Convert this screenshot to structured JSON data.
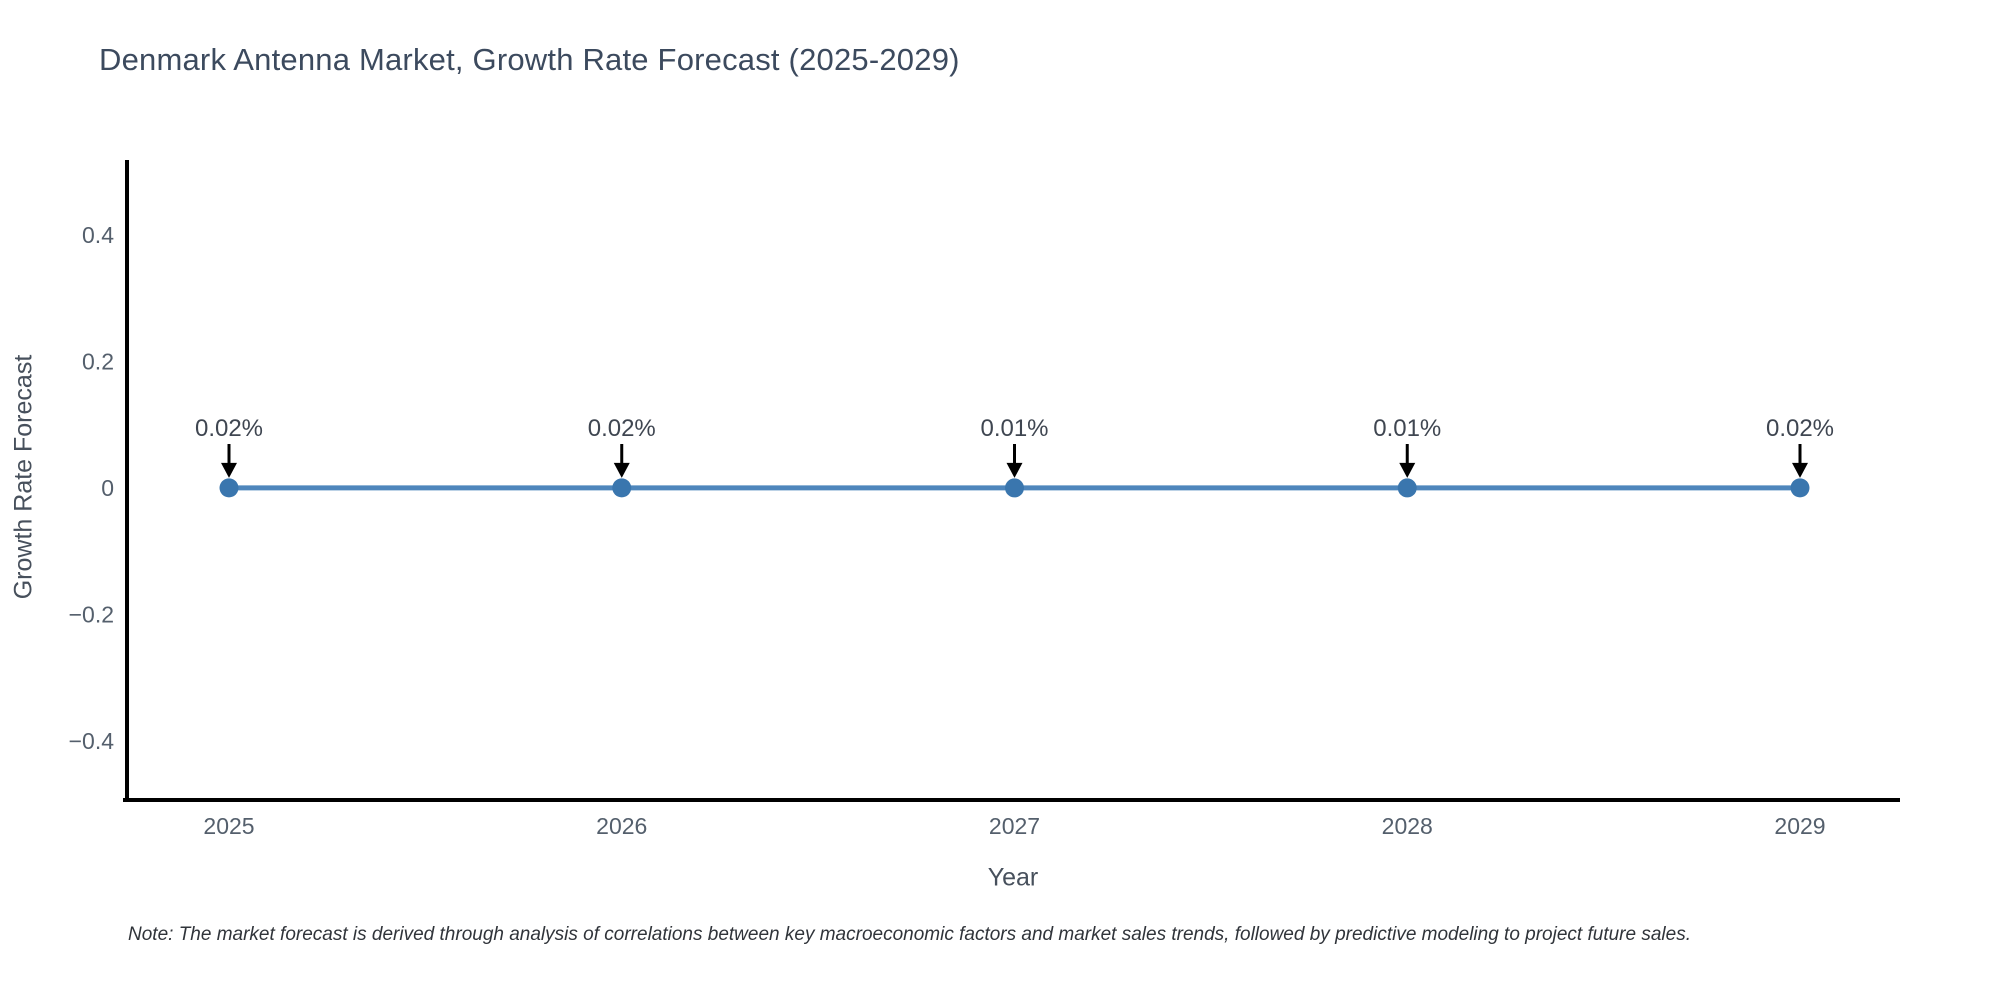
{
  "chart_data": {
    "type": "line",
    "title": "Denmark Antenna Market, Growth Rate Forecast (2025-2029)",
    "xlabel": "Year",
    "ylabel": "Growth Rate Forecast",
    "note": "Note: The market forecast is derived through analysis of correlations between key macroeconomic factors and market sales trends, followed by predictive modeling to project future sales.",
    "x": [
      "2025",
      "2026",
      "2027",
      "2028",
      "2029"
    ],
    "series": [
      {
        "name": "Growth Rate Forecast",
        "values_percent": [
          0.02,
          0.02,
          0.01,
          0.01,
          0.02
        ],
        "labels": [
          "0.02%",
          "0.02%",
          "0.01%",
          "0.01%",
          "0.02%"
        ]
      }
    ],
    "yticks": [
      0.4,
      0.2,
      0,
      -0.2,
      -0.4
    ],
    "ytick_labels": [
      "0.4",
      "0.2",
      "0",
      "−0.2",
      "−0.4"
    ],
    "ylim": [
      -0.49,
      0.52
    ],
    "grid": false,
    "legend_visible": false,
    "annotation_arrows": true,
    "colors": {
      "line": "#4e86bc",
      "marker": "#3a76ae",
      "axis": "#000000",
      "tick": "#545f6c",
      "annotation_text": "#3f4651",
      "arrow": "#000000",
      "title": "#3c4a5e",
      "axis_title": "#47505c",
      "note": "#30343a",
      "background": "#ffffff"
    }
  }
}
